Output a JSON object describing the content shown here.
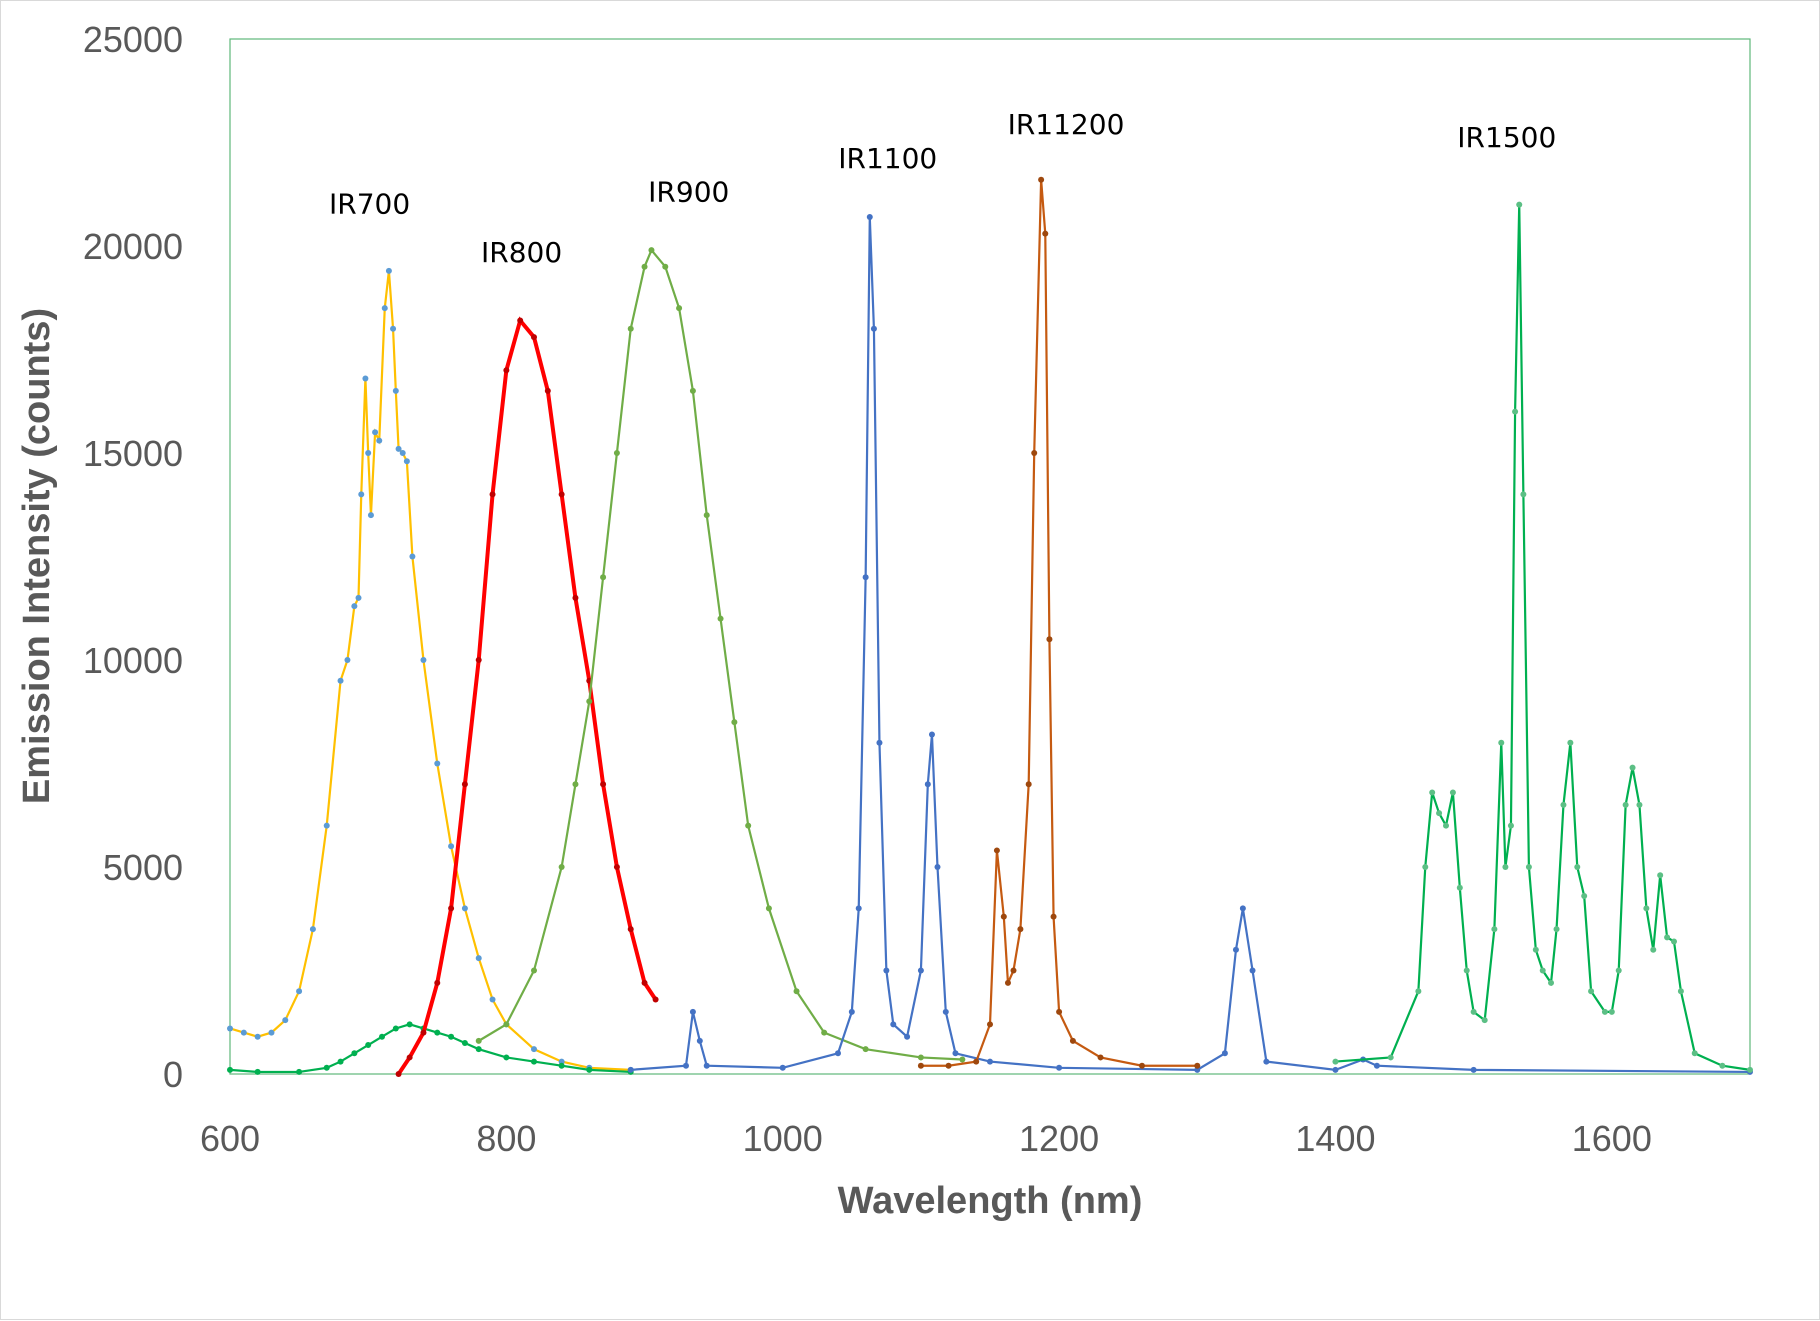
{
  "chart_data": {
    "type": "line",
    "title": "",
    "xlabel": "Wavelength (nm)",
    "ylabel": "Emission Intensity (counts)",
    "xlim": [
      600,
      1700
    ],
    "ylim": [
      0,
      25000
    ],
    "xticks": [
      "600",
      "800",
      "1000",
      "1200",
      "1400",
      "1600"
    ],
    "yticks": [
      "0",
      "5000",
      "10000",
      "15000",
      "20000",
      "25000"
    ],
    "grid": false,
    "legend": "none",
    "annotations": [
      "IR700",
      "IR800",
      "IR900",
      "IR1100",
      "IR11200",
      "IR1500"
    ],
    "series": [
      {
        "color": "#FFC000",
        "marker_color": "#5B9BD5",
        "x": [
          600,
          610,
          620,
          630,
          640,
          650,
          660,
          670,
          680,
          685,
          690,
          693,
          695,
          698,
          700,
          702,
          705,
          708,
          712,
          715,
          718,
          720,
          722,
          725,
          728,
          732,
          740,
          750,
          760,
          770,
          780,
          790,
          800,
          820,
          840,
          860,
          890
        ],
        "y": [
          1100,
          1000,
          900,
          1000,
          1300,
          2000,
          3500,
          6000,
          9500,
          10000,
          11300,
          11500,
          14000,
          16800,
          15000,
          13500,
          15500,
          15300,
          18500,
          19400,
          18000,
          16500,
          15100,
          15000,
          14800,
          12500,
          10000,
          7500,
          5500,
          4000,
          2800,
          1800,
          1200,
          600,
          300,
          150,
          100
        ]
      },
      {
        "color": "#00B050",
        "marker_color": "#00B050",
        "x": [
          600,
          620,
          650,
          670,
          680,
          690,
          700,
          710,
          720,
          730,
          740,
          750,
          760,
          770,
          780,
          800,
          820,
          840,
          860,
          890
        ],
        "y": [
          100,
          50,
          50,
          150,
          300,
          500,
          700,
          900,
          1100,
          1200,
          1100,
          1000,
          900,
          750,
          600,
          400,
          300,
          200,
          100,
          50
        ]
      },
      {
        "color": "#FF0000",
        "marker_color": "#C00000",
        "x": [
          722,
          730,
          740,
          750,
          760,
          770,
          780,
          790,
          800,
          810,
          820,
          830,
          840,
          850,
          860,
          870,
          880,
          890,
          900,
          908
        ],
        "y": [
          0,
          400,
          1000,
          2200,
          4000,
          7000,
          10000,
          14000,
          17000,
          18200,
          17800,
          16500,
          14000,
          11500,
          9500,
          7000,
          5000,
          3500,
          2200,
          1800
        ]
      },
      {
        "color": "#70AD47",
        "marker_color": "#70AD47",
        "x": [
          780,
          800,
          820,
          840,
          850,
          860,
          870,
          880,
          890,
          900,
          905,
          915,
          925,
          935,
          945,
          955,
          965,
          975,
          990,
          1010,
          1030,
          1060,
          1100,
          1130
        ],
        "y": [
          800,
          1200,
          2500,
          5000,
          7000,
          9000,
          12000,
          15000,
          18000,
          19500,
          19900,
          19500,
          18500,
          16500,
          13500,
          11000,
          8500,
          6000,
          4000,
          2000,
          1000,
          600,
          400,
          350
        ]
      },
      {
        "color": "#4472C4",
        "marker_color": "#4472C4",
        "x": [
          890,
          930,
          935,
          940,
          945,
          1000,
          1040,
          1050,
          1055,
          1060,
          1063,
          1066,
          1070,
          1075,
          1080,
          1090,
          1100,
          1105,
          1108,
          1112,
          1118,
          1125,
          1150,
          1200,
          1300,
          1320,
          1328,
          1333,
          1340,
          1350,
          1400,
          1420,
          1430,
          1500,
          1700
        ],
        "y": [
          100,
          200,
          1500,
          800,
          200,
          150,
          500,
          1500,
          4000,
          12000,
          20700,
          18000,
          8000,
          2500,
          1200,
          900,
          2500,
          7000,
          8200,
          5000,
          1500,
          500,
          300,
          150,
          100,
          500,
          3000,
          4000,
          2500,
          300,
          100,
          350,
          200,
          100,
          50
        ]
      },
      {
        "color": "#C55A11",
        "marker_color": "#9E480E",
        "x": [
          1100,
          1120,
          1140,
          1150,
          1155,
          1160,
          1163,
          1167,
          1172,
          1178,
          1182,
          1187,
          1190,
          1193,
          1196,
          1200,
          1210,
          1230,
          1260,
          1300
        ],
        "y": [
          200,
          200,
          300,
          1200,
          5400,
          3800,
          2200,
          2500,
          3500,
          7000,
          15000,
          21600,
          20300,
          10500,
          3800,
          1500,
          800,
          400,
          200,
          200
        ]
      },
      {
        "color": "#00B050",
        "marker_color": "#5CBF85",
        "x": [
          1400,
          1440,
          1460,
          1465,
          1470,
          1475,
          1480,
          1485,
          1490,
          1495,
          1500,
          1508,
          1515,
          1520,
          1523,
          1527,
          1530,
          1533,
          1536,
          1540,
          1545,
          1550,
          1556,
          1560,
          1565,
          1570,
          1575,
          1580,
          1585,
          1595,
          1600,
          1605,
          1610,
          1615,
          1620,
          1625,
          1630,
          1635,
          1640,
          1645,
          1650,
          1660,
          1680,
          1700
        ],
        "y": [
          300,
          400,
          2000,
          5000,
          6800,
          6300,
          6000,
          6800,
          4500,
          2500,
          1500,
          1300,
          3500,
          8000,
          5000,
          6000,
          16000,
          21000,
          14000,
          5000,
          3000,
          2500,
          2200,
          3500,
          6500,
          8000,
          5000,
          4300,
          2000,
          1500,
          1500,
          2500,
          6500,
          7400,
          6500,
          4000,
          3000,
          4800,
          3300,
          3200,
          2000,
          500,
          200,
          100
        ]
      }
    ]
  }
}
